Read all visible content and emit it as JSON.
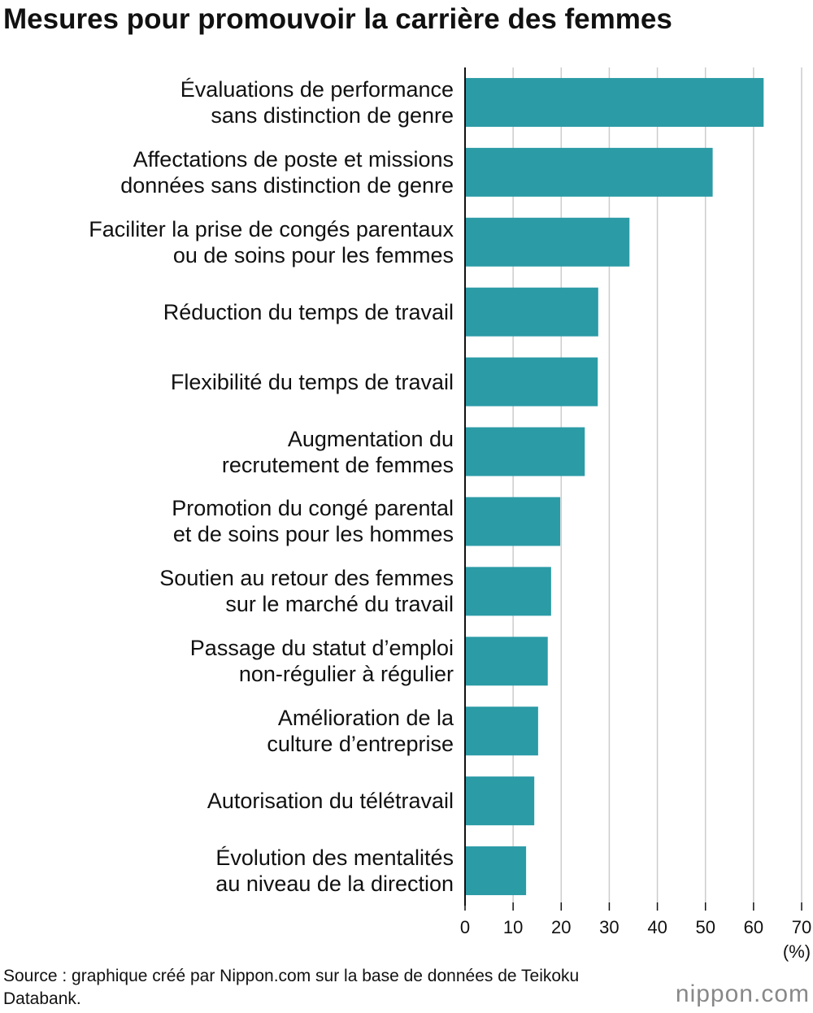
{
  "chart_data": {
    "type": "barh",
    "title": "Mesures pour promouvoir la carrière des femmes",
    "categories": [
      "Évaluations de performance\nsans distinction de genre",
      "Affectations de poste et missions\ndonnées sans distinction de genre",
      "Faciliter la prise de congés parentaux\nou de soins pour les femmes",
      "Réduction du temps de travail",
      "Flexibilité du temps de travail",
      "Augmentation du\nrecrutement de femmes",
      "Promotion du congé parental\net de soins pour les hommes",
      "Soutien au retour des femmes\nsur le marché du travail",
      "Passage du statut d’emploi\nnon-régulier à régulier",
      "Amélioration de la\nculture d’entreprise",
      "Autorisation du télétravail",
      "Évolution des mentalités\nau niveau de la direction"
    ],
    "values": [
      62.1,
      51.5,
      34.2,
      27.7,
      27.6,
      24.9,
      19.8,
      17.9,
      17.2,
      15.2,
      14.4,
      12.7
    ],
    "color": "#2b9ba6",
    "xlim": [
      0,
      70
    ],
    "xticks": [
      0,
      10,
      20,
      30,
      40,
      50,
      60,
      70
    ],
    "xlabel": "(%)",
    "grid": true,
    "source": "Source : graphique créé par Nippon.com sur la base de données de Teikoku Databank.",
    "logo": "nippon.com"
  }
}
